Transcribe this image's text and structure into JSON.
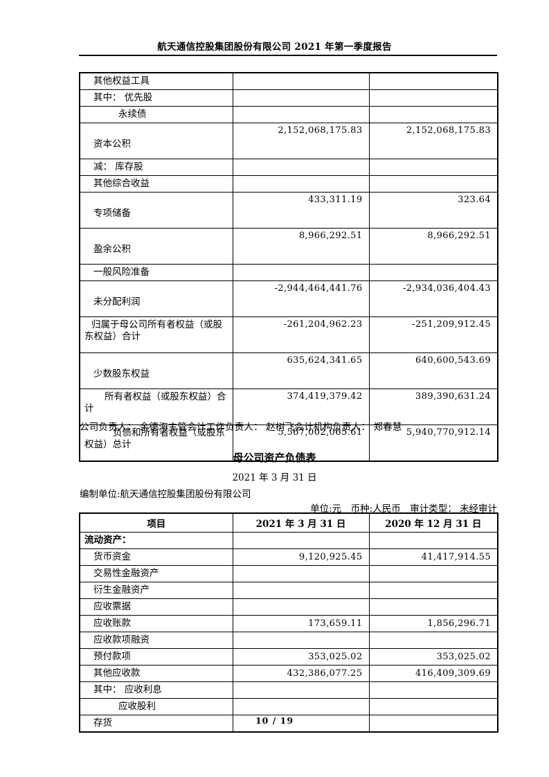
{
  "header": {
    "title": "航天通信控股集团股份有限公司 2021 年第一季度报告"
  },
  "equity_table": {
    "rows": [
      {
        "label": "其他权益工具",
        "v1": "",
        "v2": "",
        "kind": "simple",
        "indent": 1
      },
      {
        "label": "其中： 优先股",
        "v1": "",
        "v2": "",
        "kind": "simple",
        "indent": 1
      },
      {
        "label": "永续债",
        "v1": "",
        "v2": "",
        "kind": "simple",
        "indent": 2
      },
      {
        "label": "资本公积",
        "v1": "2,152,068,175.83",
        "v2": "2,152,068,175.83",
        "kind": "tall",
        "indent": 1
      },
      {
        "label": "减： 库存股",
        "v1": "",
        "v2": "",
        "kind": "simple",
        "indent": 1
      },
      {
        "label": "其他综合收益",
        "v1": "",
        "v2": "",
        "kind": "simple",
        "indent": 1
      },
      {
        "label": "专项储备",
        "v1": "433,311.19",
        "v2": "323.64",
        "kind": "tall",
        "indent": 1
      },
      {
        "label": "盈余公积",
        "v1": "8,966,292.51",
        "v2": "8,966,292.51",
        "kind": "tall",
        "indent": 1
      },
      {
        "label": "一般风险准备",
        "v1": "",
        "v2": "",
        "kind": "simple",
        "indent": 1
      },
      {
        "label": "未分配利润",
        "v1": "-2,944,464,441.76",
        "v2": "-2,934,036,404.43",
        "kind": "tall",
        "indent": 1
      },
      {
        "label": "归属于母公司所有者权益（或股东权益）合计",
        "v1": "-261,204,962.23",
        "v2": "-251,209,912.45",
        "kind": "wrap",
        "indent": 0,
        "fi": 1
      },
      {
        "label": "少数股东权益",
        "v1": "635,624,341.65",
        "v2": "640,600,543.69",
        "kind": "tall",
        "indent": 1
      },
      {
        "label": "所有者权益（或股东权益）合计",
        "v1": "374,419,379.42",
        "v2": "389,390,631.24",
        "kind": "wrap",
        "indent": 0,
        "fi": 2
      },
      {
        "label": "负债和所有者权益（或股东权益）总计",
        "v1": "5,567,002,065.61",
        "v2": "5,940,770,912.14",
        "kind": "wrap",
        "indent": 0,
        "fi": 3
      }
    ]
  },
  "officers_line": "公司负责人： 余德海主管会计工作负责人： 赵树飞会计机构负责人： 郑春慧",
  "statement": {
    "title": "母公司资产负债表",
    "date": "2021 年 3 月 31 日",
    "prepared_by": "编制单位:航天通信控股集团股份有限公司",
    "unit_note": "单位:元　币种:人民币　审计类型： 未经审计",
    "columns": [
      "项目",
      "2021 年 3 月 31 日",
      "2020 年 12 月 31 日"
    ],
    "rows": [
      {
        "label": "流动资产：",
        "v1": "",
        "v2": "",
        "kind": "section",
        "indent": 0
      },
      {
        "label": "货币资金",
        "v1": "9,120,925.45",
        "v2": "41,417,914.55",
        "kind": "item",
        "indent": 1
      },
      {
        "label": "交易性金融资产",
        "v1": "",
        "v2": "",
        "kind": "item",
        "indent": 1
      },
      {
        "label": "衍生金融资产",
        "v1": "",
        "v2": "",
        "kind": "item",
        "indent": 1
      },
      {
        "label": "应收票据",
        "v1": "",
        "v2": "",
        "kind": "item",
        "indent": 1
      },
      {
        "label": "应收账款",
        "v1": "173,659.11",
        "v2": "1,856,296.71",
        "kind": "item",
        "indent": 1
      },
      {
        "label": "应收款项融资",
        "v1": "",
        "v2": "",
        "kind": "item",
        "indent": 1
      },
      {
        "label": "预付款项",
        "v1": "353,025.02",
        "v2": "353,025.02",
        "kind": "item",
        "indent": 1
      },
      {
        "label": "其他应收款",
        "v1": "432,386,077.25",
        "v2": "416,409,309.69",
        "kind": "item",
        "indent": 1
      },
      {
        "label": "其中： 应收利息",
        "v1": "",
        "v2": "",
        "kind": "item",
        "indent": 1
      },
      {
        "label": "应收股利",
        "v1": "",
        "v2": "",
        "kind": "item",
        "indent": 2
      },
      {
        "label": "存货",
        "v1": "",
        "v2": "",
        "kind": "item",
        "indent": 1
      }
    ]
  },
  "footer": {
    "page_number": "10 / 19"
  }
}
